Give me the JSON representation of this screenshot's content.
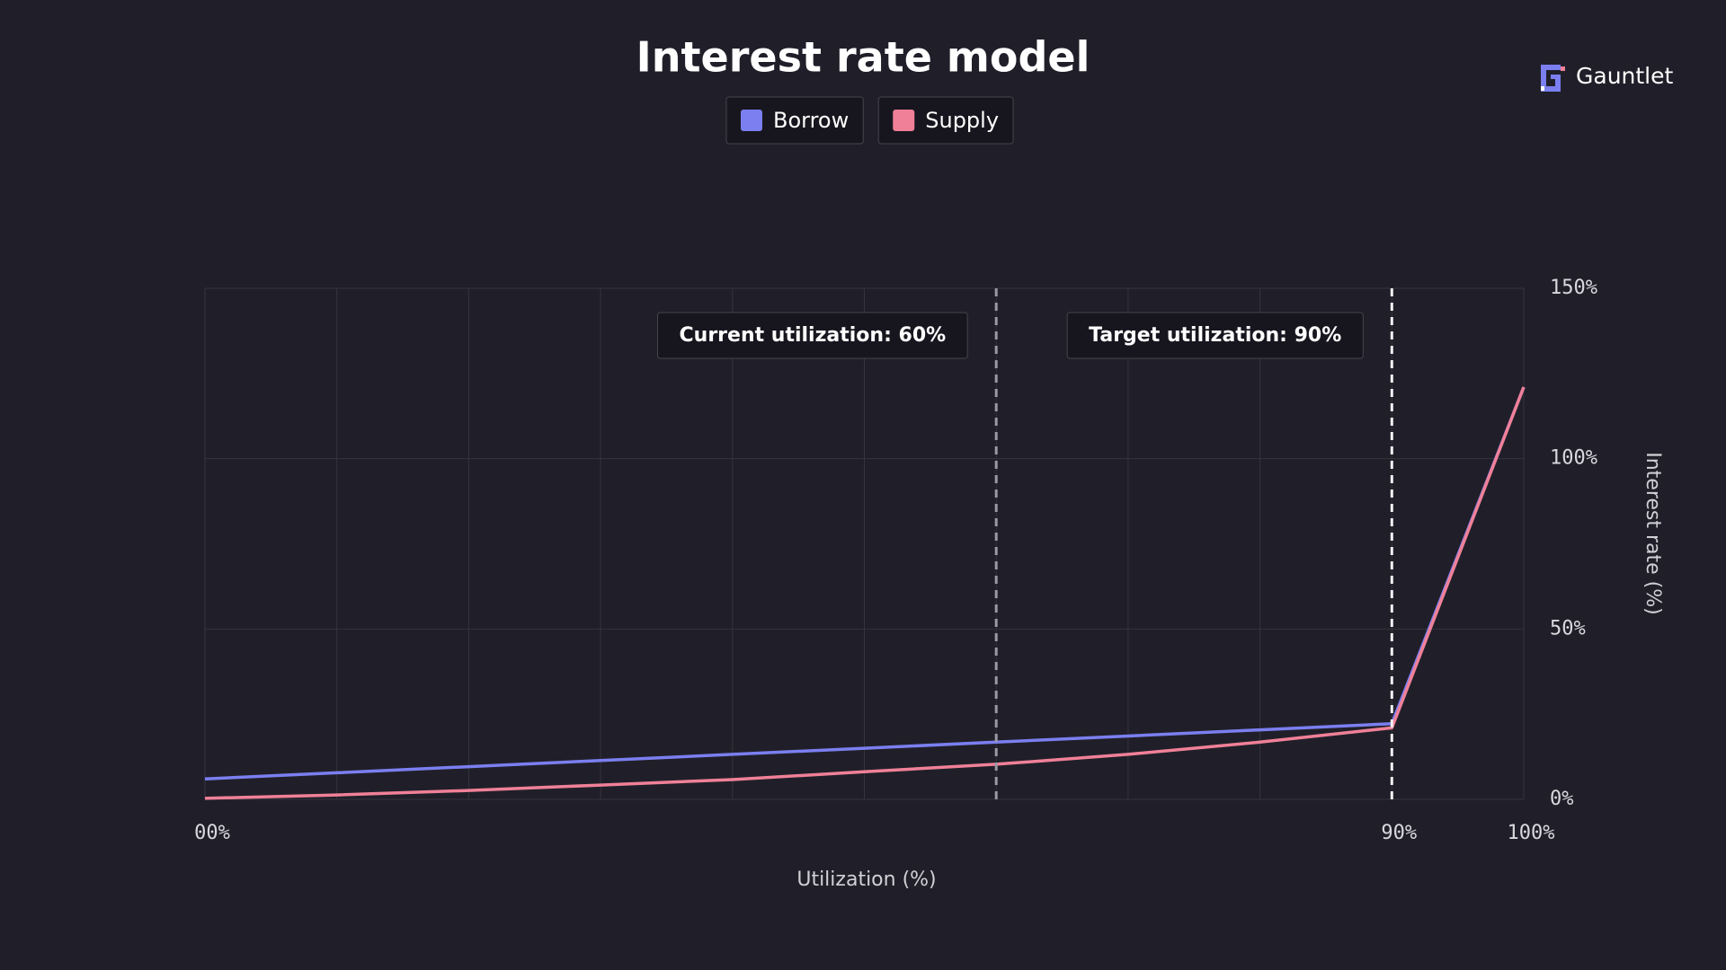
{
  "brand": "Gauntlet",
  "chart_data": {
    "type": "line",
    "title": "Interest rate model",
    "x_label": "Utilization (%)",
    "y_label": "Interest rate (%)",
    "x": [
      0,
      10,
      20,
      30,
      40,
      50,
      60,
      70,
      80,
      90,
      100
    ],
    "series": [
      {
        "name": "Borrow",
        "color": "#7b7ff0",
        "values": [
          6,
          7.8,
          9.6,
          11.4,
          13.2,
          15,
          16.8,
          18.6,
          20.4,
          22.2,
          121
        ]
      },
      {
        "name": "Supply",
        "color": "#f08098",
        "values": [
          0.3,
          1.3,
          2.6,
          4.2,
          5.8,
          8.1,
          10.3,
          13.2,
          16.8,
          21,
          121
        ]
      }
    ],
    "xlim": [
      0,
      100
    ],
    "xticks": [
      {
        "value": 0,
        "label": "00%"
      },
      {
        "value": 90,
        "label": "90%"
      },
      {
        "value": 100,
        "label": "100%"
      }
    ],
    "xgrid": [
      0,
      10,
      20,
      30,
      40,
      50,
      60,
      70,
      80,
      90,
      100
    ],
    "ylim": [
      0,
      150
    ],
    "yticks": [
      {
        "value": 0,
        "label": "0%"
      },
      {
        "value": 50,
        "label": "50%"
      },
      {
        "value": 100,
        "label": "100%"
      },
      {
        "value": 150,
        "label": "150%"
      }
    ],
    "grid": true,
    "markers": [
      {
        "value": 60,
        "label": "Current utilization: 60%",
        "color": "#9a99a3"
      },
      {
        "value": 90,
        "label": "Target utilization: 90%",
        "color": "#f2f2f5"
      }
    ]
  }
}
